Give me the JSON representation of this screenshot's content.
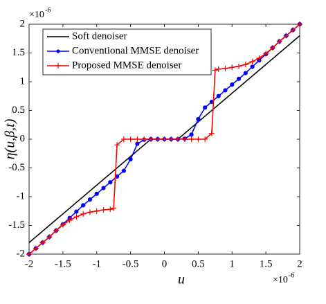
{
  "chart_data": {
    "type": "line",
    "xlabel": "u",
    "ylabel": "η(u,β,t)",
    "x_scale": {
      "base": "×10",
      "exponent": "-6"
    },
    "y_scale": {
      "base": "×10",
      "exponent": "-6"
    },
    "xlim": [
      -2,
      2
    ],
    "ylim": [
      -2,
      2
    ],
    "xticks": [
      -2,
      -1.5,
      -1,
      -0.5,
      0,
      0.5,
      1,
      1.5,
      2
    ],
    "yticks": [
      -2,
      -1.5,
      -1,
      -0.5,
      0,
      0.5,
      1,
      1.5,
      2
    ],
    "grid": false,
    "legend": "upper left",
    "series": [
      {
        "name": "Soft denoiser",
        "color": "#000000",
        "marker": "none",
        "x": [
          -2,
          -0.2,
          0.2,
          2
        ],
        "values": [
          -1.8,
          0,
          0,
          1.8
        ]
      },
      {
        "name": "Conventional MMSE denoiser",
        "color": "#0000ff",
        "marker": "circle",
        "x": [
          -2,
          -1.9,
          -1.8,
          -1.7,
          -1.6,
          -1.5,
          -1.4,
          -1.3,
          -1.2,
          -1.1,
          -1,
          -0.9,
          -0.8,
          -0.7,
          -0.6,
          -0.5,
          -0.4,
          -0.3,
          -0.2,
          -0.1,
          0,
          0.1,
          0.2,
          0.3,
          0.4,
          0.5,
          0.6,
          0.7,
          0.8,
          0.9,
          1,
          1.1,
          1.2,
          1.3,
          1.4,
          1.5,
          1.6,
          1.7,
          1.8,
          1.9,
          2
        ],
        "values": [
          -2,
          -1.9,
          -1.8,
          -1.7,
          -1.59,
          -1.48,
          -1.37,
          -1.26,
          -1.15,
          -1.05,
          -0.95,
          -0.85,
          -0.75,
          -0.65,
          -0.55,
          -0.35,
          -0.08,
          -0.01,
          0,
          0,
          0,
          0,
          0,
          0.01,
          0.08,
          0.35,
          0.55,
          0.65,
          0.75,
          0.85,
          0.95,
          1.05,
          1.15,
          1.26,
          1.37,
          1.48,
          1.59,
          1.7,
          1.8,
          1.9,
          2
        ]
      },
      {
        "name": "Proposed MMSE denoiser",
        "color": "#ff0000",
        "marker": "plus",
        "x": [
          -2,
          -1.9,
          -1.8,
          -1.7,
          -1.6,
          -1.5,
          -1.4,
          -1.3,
          -1.2,
          -1.1,
          -1,
          -0.9,
          -0.8,
          -0.75,
          -0.7,
          -0.6,
          -0.5,
          -0.4,
          -0.3,
          -0.2,
          -0.1,
          0,
          0.1,
          0.2,
          0.3,
          0.4,
          0.5,
          0.6,
          0.7,
          0.75,
          0.8,
          0.9,
          1,
          1.1,
          1.2,
          1.3,
          1.4,
          1.5,
          1.6,
          1.7,
          1.8,
          1.9,
          2
        ],
        "values": [
          -2,
          -1.9,
          -1.8,
          -1.7,
          -1.59,
          -1.49,
          -1.41,
          -1.35,
          -1.3,
          -1.27,
          -1.25,
          -1.23,
          -1.22,
          -1.2,
          -0.1,
          0,
          0,
          0,
          0,
          0,
          0,
          0,
          0,
          0,
          0,
          0,
          0,
          0,
          0.1,
          1.2,
          1.22,
          1.23,
          1.25,
          1.27,
          1.3,
          1.35,
          1.41,
          1.49,
          1.59,
          1.7,
          1.8,
          1.9,
          2
        ]
      }
    ]
  }
}
